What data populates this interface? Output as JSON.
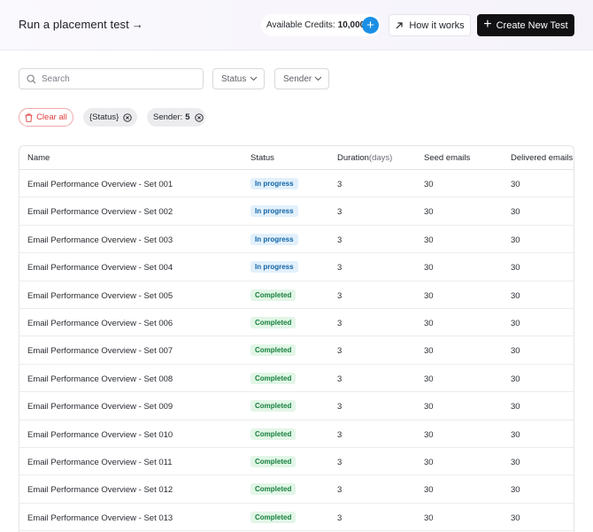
{
  "header": {
    "title": "Run a placement test",
    "title_arrow": "→",
    "credits_label": "Available Credits:",
    "credits_value": "10,000",
    "credits_add": "+",
    "how_label": "How it works",
    "create_label": "Create New Test",
    "create_plus": "+"
  },
  "filters": {
    "search_placeholder": "Search",
    "search_value": "",
    "status_label": "Status",
    "sender_label": "Sender"
  },
  "chips": {
    "clear_label": "Clear all",
    "status_chip": "{Status}",
    "sender_chip_label": "Sender:",
    "sender_chip_value": "5"
  },
  "table": {
    "columns": {
      "name": "Name",
      "status": "Status",
      "duration": "Duration",
      "duration_unit": "(days)",
      "seed": "Seed emails",
      "delivered": "Delivered emails"
    },
    "rows": [
      {
        "name": "Email Performance Overview - Set 001",
        "status": "In progress",
        "state": "progress",
        "duration": "3",
        "seed": "30",
        "delivered": "30"
      },
      {
        "name": "Email Performance Overview - Set 002",
        "status": "In progress",
        "state": "progress",
        "duration": "3",
        "seed": "30",
        "delivered": "30"
      },
      {
        "name": "Email Performance Overview - Set 003",
        "status": "In progress",
        "state": "progress",
        "duration": "3",
        "seed": "30",
        "delivered": "30"
      },
      {
        "name": "Email Performance Overview - Set 004",
        "status": "In progress",
        "state": "progress",
        "duration": "3",
        "seed": "30",
        "delivered": "30"
      },
      {
        "name": "Email Performance Overview - Set 005",
        "status": "Completed",
        "state": "completed",
        "duration": "3",
        "seed": "30",
        "delivered": "30"
      },
      {
        "name": "Email Performance Overview - Set 006",
        "status": "Completed",
        "state": "completed",
        "duration": "3",
        "seed": "30",
        "delivered": "30"
      },
      {
        "name": "Email Performance Overview - Set 007",
        "status": "Completed",
        "state": "completed",
        "duration": "3",
        "seed": "30",
        "delivered": "30"
      },
      {
        "name": "Email Performance Overview - Set 008",
        "status": "Completed",
        "state": "completed",
        "duration": "3",
        "seed": "30",
        "delivered": "30"
      },
      {
        "name": "Email Performance Overview - Set 009",
        "status": "Completed",
        "state": "completed",
        "duration": "3",
        "seed": "30",
        "delivered": "30"
      },
      {
        "name": "Email Performance Overview - Set 010",
        "status": "Completed",
        "state": "completed",
        "duration": "3",
        "seed": "30",
        "delivered": "30"
      },
      {
        "name": "Email Performance Overview - Set 011",
        "status": "Completed",
        "state": "completed",
        "duration": "3",
        "seed": "30",
        "delivered": "30"
      },
      {
        "name": "Email Performance Overview - Set 012",
        "status": "Completed",
        "state": "completed",
        "duration": "3",
        "seed": "30",
        "delivered": "30"
      },
      {
        "name": "Email Performance Overview - Set 013",
        "status": "Completed",
        "state": "completed",
        "duration": "3",
        "seed": "30",
        "delivered": "30"
      }
    ]
  },
  "colors": {
    "accent_blue": "#1b8fe6",
    "primary_button": "#111113",
    "danger": "#e03b3b",
    "progress_bg": "#e2f0fb",
    "progress_text": "#1265a8",
    "completed_bg": "#e2f6e7",
    "completed_text": "#17803d"
  },
  "icons": {
    "search": "search-icon",
    "chevron": "chevron-down-icon",
    "arrow_up_right": "arrow-up-right-icon",
    "trash": "trash-icon",
    "remove": "close-circle-icon"
  }
}
